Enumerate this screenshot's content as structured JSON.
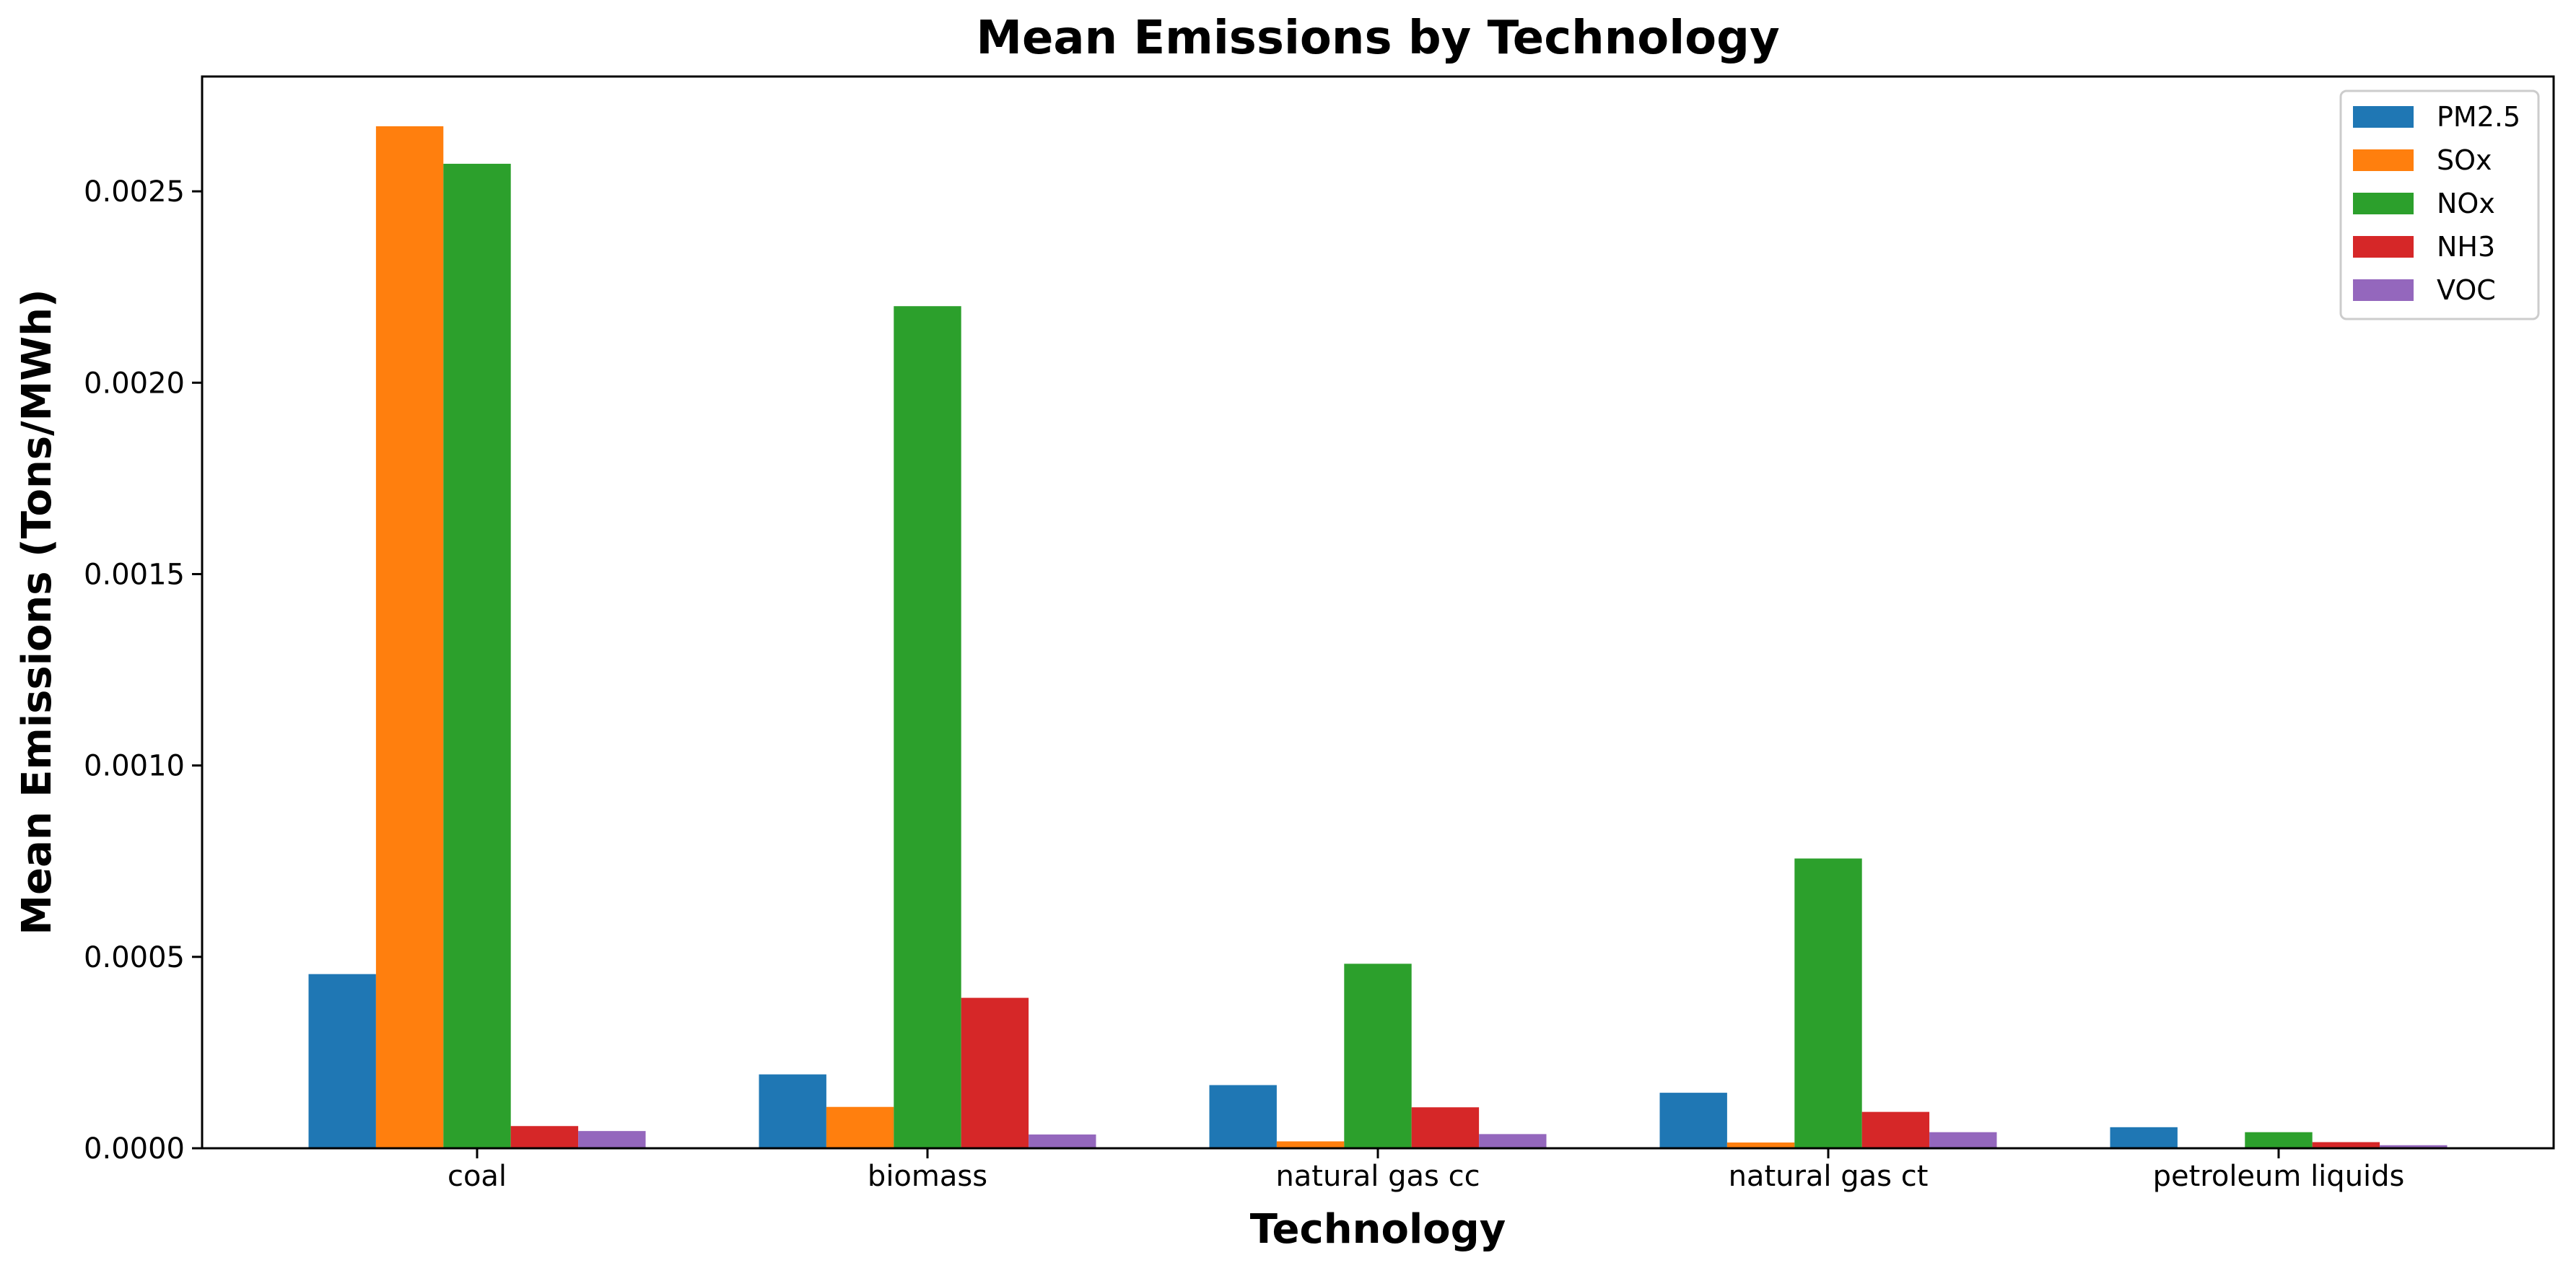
{
  "chart_data": {
    "type": "bar",
    "title": "Mean Emissions by Technology",
    "xlabel": "Technology",
    "ylabel": "Mean Emissions (Tons/MWh)",
    "categories": [
      "coal",
      "biomass",
      "natural gas cc",
      "natural gas ct",
      "petroleum liquids"
    ],
    "series": [
      {
        "name": "PM2.5",
        "color": "#1f77b4",
        "values": [
          0.000455,
          0.000193,
          0.000165,
          0.000145,
          5.5e-05
        ]
      },
      {
        "name": "SOx",
        "color": "#ff7f0e",
        "values": [
          0.00267,
          0.000108,
          1.8e-05,
          1.5e-05,
          2e-06
        ]
      },
      {
        "name": "NOx",
        "color": "#2ca02c",
        "values": [
          0.002572,
          0.0022,
          0.000482,
          0.000757,
          4.2e-05
        ]
      },
      {
        "name": "NH3",
        "color": "#d62728",
        "values": [
          5.8e-05,
          0.000393,
          0.000107,
          9.5e-05,
          1.6e-05
        ]
      },
      {
        "name": "VOC",
        "color": "#9467bd",
        "values": [
          4.5e-05,
          3.6e-05,
          3.7e-05,
          4.2e-05,
          8e-06
        ]
      }
    ],
    "ylim": [
      0,
      0.0028
    ],
    "yticks": [
      "0.0000",
      "0.0005",
      "0.0010",
      "0.0015",
      "0.0020",
      "0.0025"
    ],
    "ytick_values": [
      0,
      0.0005,
      0.001,
      0.0015,
      0.002,
      0.0025
    ],
    "grid": false,
    "legend_position": "top-right"
  }
}
